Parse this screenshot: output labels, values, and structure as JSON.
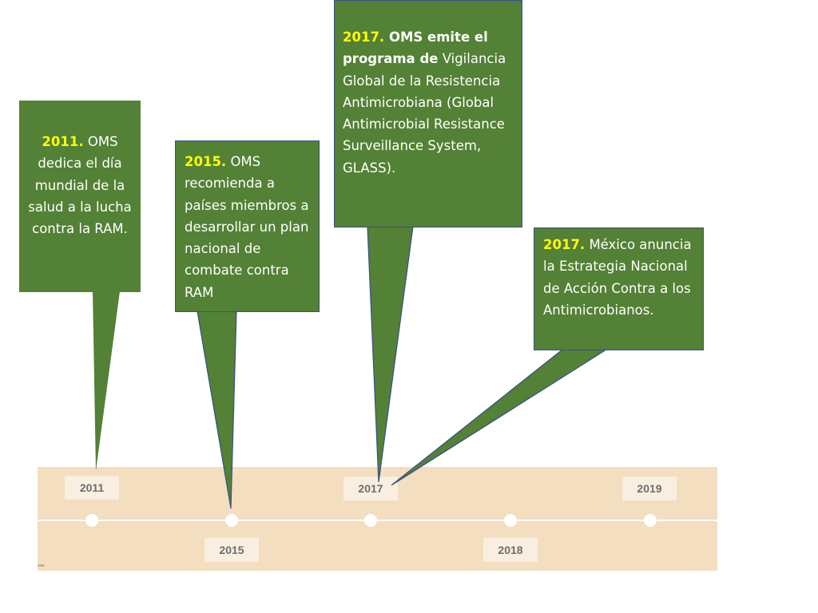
{
  "timeline": {
    "years": [
      "2011",
      "2015",
      "2017",
      "2018",
      "2019"
    ]
  },
  "callouts": {
    "c2011": {
      "year": "2011.",
      "text": " OMS dedica el día mundial de la salud a la lucha contra la RAM."
    },
    "c2015": {
      "year": "2015.",
      "text": " OMS recomienda a países miembros a desarrollar un plan nacional de combate contra RAM"
    },
    "c2017a": {
      "year": "2017.",
      "bold": " OMS emite el programa de",
      "text": " Vigilancia Global de la Resistencia Antimicrobiana (Global Antimicrobial Resistance Surveillance System, GLASS)."
    },
    "c2017b": {
      "year": "2017.",
      "text": " México anuncia la Estrategia Nacional de Acción Contra  a los Antimicrobianos."
    }
  },
  "colors": {
    "callout_fill": "#538135",
    "year_highlight": "#ffff00",
    "band": "#f3dec0",
    "label_box": "#f9efe1"
  }
}
